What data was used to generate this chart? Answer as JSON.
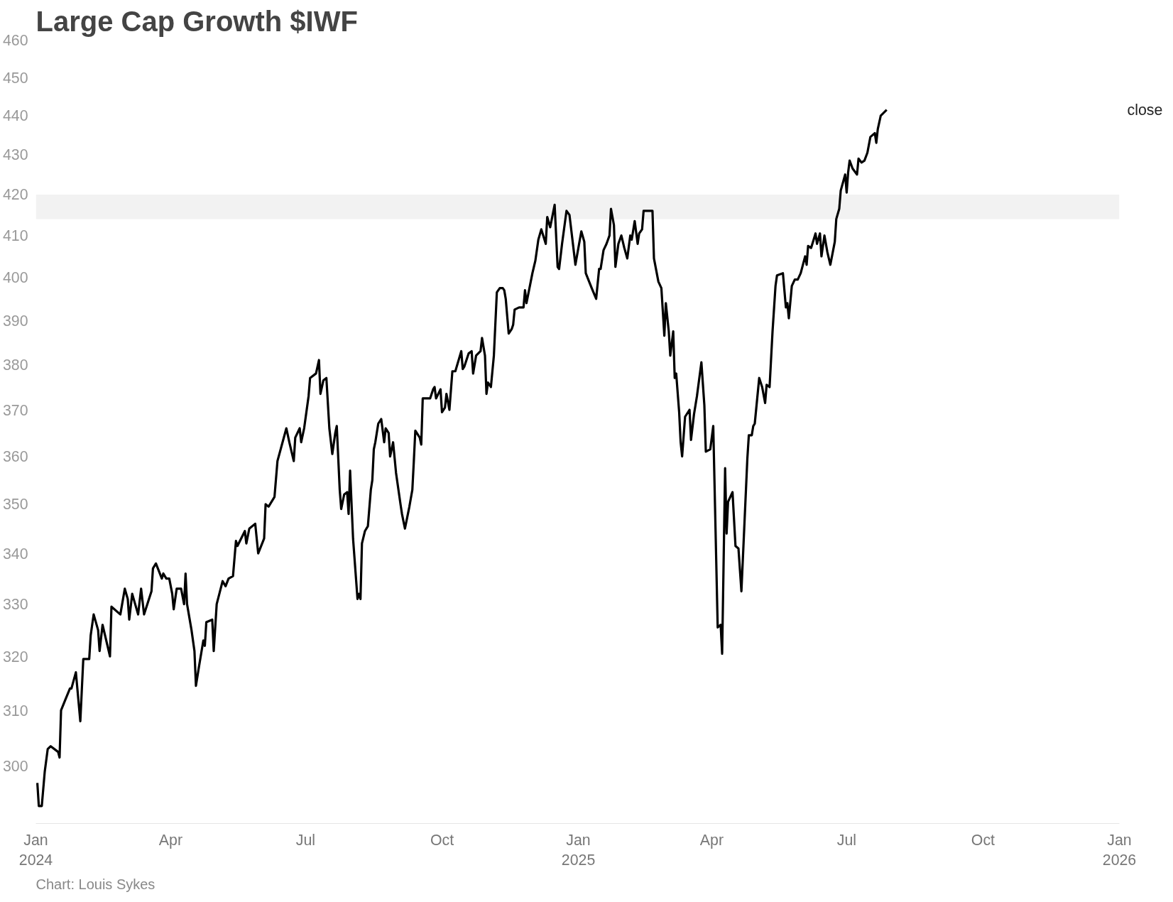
{
  "chart_data": {
    "type": "line",
    "title": "Large Cap Growth $IWF",
    "annotations": [
      "Chart: Louis Sykes"
    ],
    "log": true,
    "grid": false,
    "line_style": "solid",
    "marker": "none",
    "xlim": [
      "2024-01-01",
      "2026-01-01"
    ],
    "ylim": [
      290,
      460
    ],
    "xticks": [
      {
        "value": "2024-01-01",
        "label": "Jan\n2024"
      },
      {
        "value": "2024-04-01",
        "label": "Apr"
      },
      {
        "value": "2024-07-01",
        "label": "Jul"
      },
      {
        "value": "2024-10-01",
        "label": "Oct"
      },
      {
        "value": "2025-01-01",
        "label": "Jan\n2025"
      },
      {
        "value": "2025-04-01",
        "label": "Apr"
      },
      {
        "value": "2025-07-01",
        "label": "Jul"
      },
      {
        "value": "2025-10-01",
        "label": "Oct"
      },
      {
        "value": "2026-01-01",
        "label": "Jan\n2026"
      }
    ],
    "yticks": [
      300,
      310,
      320,
      330,
      340,
      350,
      360,
      370,
      380,
      390,
      400,
      410,
      420,
      430,
      440,
      450,
      460
    ],
    "bands": [
      {
        "axis": "y",
        "from": 414,
        "to": 420,
        "color": "#f2f2f2"
      }
    ],
    "x": [
      "2024-01-02",
      "2024-01-03",
      "2024-01-05",
      "2024-01-07",
      "2024-01-09",
      "2024-01-11",
      "2024-01-16",
      "2024-01-17",
      "2024-01-18",
      "2024-01-21",
      "2024-01-24",
      "2024-01-25",
      "2024-01-28",
      "2024-01-31",
      "2024-02-02",
      "2024-02-06",
      "2024-02-07",
      "2024-02-09",
      "2024-02-12",
      "2024-02-13",
      "2024-02-15",
      "2024-02-20",
      "2024-02-21",
      "2024-02-27",
      "2024-03-01",
      "2024-03-03",
      "2024-03-04",
      "2024-03-06",
      "2024-03-10",
      "2024-03-12",
      "2024-03-14",
      "2024-03-19",
      "2024-03-20",
      "2024-03-22",
      "2024-03-26",
      "2024-03-27",
      "2024-03-29",
      "2024-03-31",
      "2024-04-02",
      "2024-04-03",
      "2024-04-05",
      "2024-04-08",
      "2024-04-10",
      "2024-04-11",
      "2024-04-12",
      "2024-04-15",
      "2024-04-17",
      "2024-04-18",
      "2024-04-20",
      "2024-04-23",
      "2024-04-24",
      "2024-04-25",
      "2024-04-29",
      "2024-04-30",
      "2024-05-02",
      "2024-05-06",
      "2024-05-08",
      "2024-05-10",
      "2024-05-13",
      "2024-05-15",
      "2024-05-16",
      "2024-05-21",
      "2024-05-22",
      "2024-05-24",
      "2024-05-28",
      "2024-05-30",
      "2024-06-03",
      "2024-06-04",
      "2024-06-06",
      "2024-06-10",
      "2024-06-12",
      "2024-06-18",
      "2024-06-20",
      "2024-06-23",
      "2024-06-24",
      "2024-06-27",
      "2024-06-28",
      "2024-06-30",
      "2024-07-03",
      "2024-07-04",
      "2024-07-08",
      "2024-07-10",
      "2024-07-11",
      "2024-07-13",
      "2024-07-15",
      "2024-07-17",
      "2024-07-19",
      "2024-07-21",
      "2024-07-22",
      "2024-07-24",
      "2024-07-25",
      "2024-07-27",
      "2024-07-29",
      "2024-07-30",
      "2024-07-31",
      "2024-08-02",
      "2024-08-05",
      "2024-08-06",
      "2024-08-07",
      "2024-08-08",
      "2024-08-10",
      "2024-08-12",
      "2024-08-14",
      "2024-08-15",
      "2024-08-16",
      "2024-08-17",
      "2024-08-19",
      "2024-08-21",
      "2024-08-23",
      "2024-08-24",
      "2024-08-26",
      "2024-08-27",
      "2024-08-29",
      "2024-08-31",
      "2024-09-03",
      "2024-09-04",
      "2024-09-06",
      "2024-09-09",
      "2024-09-11",
      "2024-09-12",
      "2024-09-13",
      "2024-09-16",
      "2024-09-17",
      "2024-09-18",
      "2024-09-23",
      "2024-09-25",
      "2024-09-26",
      "2024-09-27",
      "2024-09-30",
      "2024-10-01",
      "2024-10-03",
      "2024-10-04",
      "2024-10-06",
      "2024-10-08",
      "2024-10-10",
      "2024-10-14",
      "2024-10-15",
      "2024-10-16",
      "2024-10-19",
      "2024-10-21",
      "2024-10-22",
      "2024-10-24",
      "2024-10-27",
      "2024-10-28",
      "2024-10-30",
      "2024-10-31",
      "2024-11-01",
      "2024-11-03",
      "2024-11-05",
      "2024-11-07",
      "2024-11-09",
      "2024-11-11",
      "2024-11-12",
      "2024-11-13",
      "2024-11-15",
      "2024-11-17",
      "2024-11-18",
      "2024-11-19",
      "2024-11-22",
      "2024-11-25",
      "2024-11-26",
      "2024-11-27",
      "2024-12-01",
      "2024-12-03",
      "2024-12-05",
      "2024-12-07",
      "2024-12-10",
      "2024-12-11",
      "2024-12-13",
      "2024-12-16",
      "2024-12-18",
      "2024-12-19",
      "2024-12-21",
      "2024-12-24",
      "2024-12-26",
      "2024-12-28",
      "2024-12-30",
      "2025-01-03",
      "2025-01-05",
      "2025-01-06",
      "2025-01-10",
      "2025-01-13",
      "2025-01-15",
      "2025-01-16",
      "2025-01-18",
      "2025-01-20",
      "2025-01-22",
      "2025-01-23",
      "2025-01-25",
      "2025-01-26",
      "2025-01-28",
      "2025-01-30",
      "2025-02-01",
      "2025-02-03",
      "2025-02-05",
      "2025-02-06",
      "2025-02-08",
      "2025-02-10",
      "2025-02-11",
      "2025-02-13",
      "2025-02-14",
      "2025-02-18",
      "2025-02-20",
      "2025-02-21",
      "2025-02-24",
      "2025-02-26",
      "2025-02-27",
      "2025-02-28",
      "2025-03-01",
      "2025-03-03",
      "2025-03-04",
      "2025-03-06",
      "2025-03-07",
      "2025-03-08",
      "2025-03-10",
      "2025-03-11",
      "2025-03-12",
      "2025-03-14",
      "2025-03-17",
      "2025-03-18",
      "2025-03-20",
      "2025-03-22",
      "2025-03-25",
      "2025-03-27",
      "2025-03-28",
      "2025-03-31",
      "2025-04-02",
      "2025-04-05",
      "2025-04-07",
      "2025-04-08",
      "2025-04-10",
      "2025-04-11",
      "2025-04-12",
      "2025-04-15",
      "2025-04-17",
      "2025-04-19",
      "2025-04-21",
      "2025-04-25",
      "2025-04-26",
      "2025-04-28",
      "2025-04-29",
      "2025-04-30",
      "2025-05-03",
      "2025-05-05",
      "2025-05-07",
      "2025-05-08",
      "2025-05-10",
      "2025-05-12",
      "2025-05-14",
      "2025-05-15",
      "2025-05-19",
      "2025-05-21",
      "2025-05-22",
      "2025-05-23",
      "2025-05-25",
      "2025-05-27",
      "2025-05-29",
      "2025-05-31",
      "2025-06-03",
      "2025-06-04",
      "2025-06-05",
      "2025-06-07",
      "2025-06-10",
      "2025-06-11",
      "2025-06-13",
      "2025-06-14",
      "2025-06-16",
      "2025-06-18",
      "2025-06-20",
      "2025-06-23",
      "2025-06-24",
      "2025-06-26",
      "2025-06-27",
      "2025-06-30",
      "2025-07-01",
      "2025-07-02",
      "2025-07-03",
      "2025-07-05",
      "2025-07-08",
      "2025-07-09",
      "2025-07-11",
      "2025-07-13",
      "2025-07-15",
      "2025-07-17",
      "2025-07-20",
      "2025-07-21",
      "2025-07-22",
      "2025-07-24",
      "2025-07-28"
    ],
    "series": [
      {
        "name": "close",
        "color": "#000000",
        "values": [
          297,
          293,
          293,
          299,
          303,
          303.5,
          302.5,
          301.5,
          310,
          312,
          314,
          314,
          317,
          308,
          319.5,
          319.5,
          324,
          328,
          325,
          321,
          326,
          320,
          329.5,
          328,
          333,
          331,
          327,
          332,
          328,
          333,
          328,
          332.5,
          337,
          338,
          335,
          336,
          335,
          335,
          332,
          329,
          333,
          333,
          330,
          336,
          330,
          325,
          321,
          314.5,
          318,
          323,
          322,
          326.5,
          327,
          321,
          330,
          334.5,
          333.5,
          335,
          335.5,
          342.5,
          341.5,
          344.5,
          342,
          345,
          346,
          340,
          343,
          350,
          349.5,
          351.5,
          359,
          366,
          363,
          359,
          364,
          366,
          363,
          366,
          373,
          377,
          378,
          381,
          373.5,
          376.5,
          377,
          366,
          360.5,
          365,
          366.5,
          353,
          349,
          352,
          352.5,
          348,
          357,
          343,
          331,
          332,
          331,
          342,
          344.5,
          345.5,
          353,
          355,
          361.5,
          363,
          367,
          368,
          363,
          366,
          365,
          360,
          363,
          356.5,
          350,
          348,
          345,
          349.5,
          353,
          359,
          365.5,
          364,
          362.5,
          372.5,
          372.5,
          374.5,
          375,
          372.5,
          374.5,
          369.5,
          370.5,
          373.5,
          370,
          378.5,
          378.5,
          383,
          379,
          379.5,
          382.5,
          383,
          378,
          382,
          383,
          386,
          382,
          373.5,
          376,
          375,
          382,
          396.5,
          397.5,
          397.5,
          397,
          395,
          387,
          388,
          389,
          392.5,
          393,
          393,
          397,
          394,
          401,
          404,
          409,
          411.5,
          408,
          414.5,
          412,
          417.5,
          402.5,
          402,
          408,
          416,
          415,
          409,
          403,
          411,
          408.5,
          401,
          397.5,
          395,
          402,
          402,
          406.5,
          408,
          410,
          416.5,
          412.5,
          402.5,
          408,
          410,
          407,
          404.5,
          410,
          409,
          413.5,
          408,
          410.5,
          411.5,
          416,
          416,
          416,
          404.5,
          399,
          397.5,
          392,
          386.5,
          394,
          387.5,
          382,
          387.5,
          377,
          378,
          369.5,
          363,
          360,
          368.5,
          370,
          363.5,
          369,
          373,
          380.5,
          371,
          361,
          361.5,
          366.5,
          325.5,
          326,
          320.5,
          357.5,
          344,
          350.5,
          352.5,
          341.5,
          341,
          332.5,
          359.5,
          364.5,
          364.5,
          366.5,
          367,
          377,
          375,
          371.5,
          375.5,
          375,
          387.5,
          398,
          400.5,
          401,
          393,
          394,
          390.5,
          398,
          399.5,
          399.5,
          401,
          405,
          403,
          407.5,
          407,
          410.5,
          408,
          410.5,
          405,
          410,
          406,
          403,
          408.5,
          414,
          416.5,
          421,
          425,
          420.5,
          425.5,
          428.5,
          426.5,
          425,
          429,
          428,
          428.5,
          430.5,
          434.5,
          435.5,
          433,
          436.5,
          440,
          441.5
        ]
      }
    ]
  }
}
